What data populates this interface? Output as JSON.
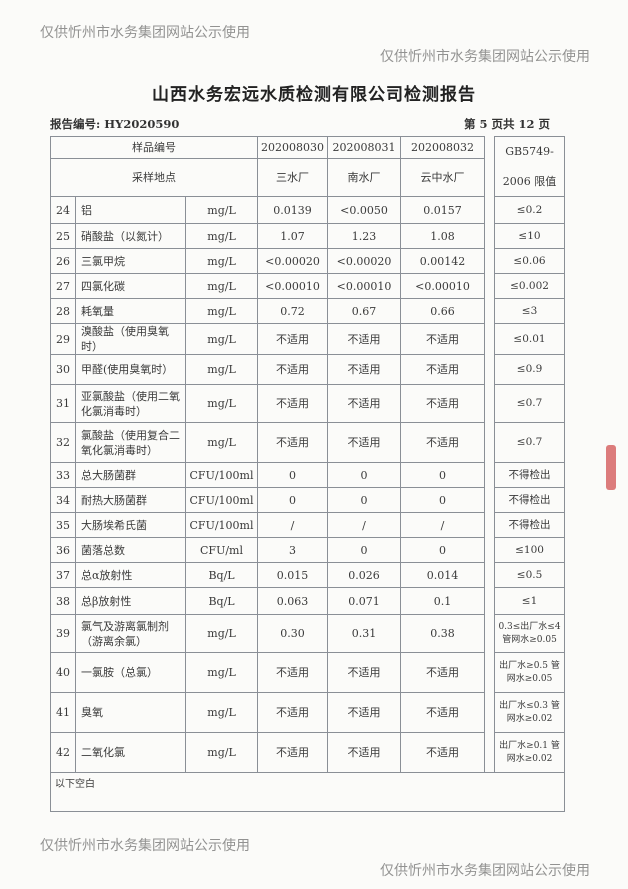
{
  "title": "山西水务宏远水质检测有限公司检测报告",
  "report_no": "报告编号: HY2020590",
  "page": "第 5 页共 12 页",
  "header": {
    "sample_no_label": "样品编号",
    "site_label": "采样地点",
    "samples": [
      "202008030",
      "202008031",
      "202008032"
    ],
    "sites": [
      "三水厂",
      "南水厂",
      "云中水厂"
    ],
    "limit_label_1": "GB5749-",
    "limit_label_2": "2006 限值"
  },
  "rows": [
    {
      "no": "24",
      "name": "铝",
      "unit": "mg/L",
      "v": [
        "0.0139",
        "<0.0050",
        "0.0157"
      ],
      "limit": "≤0.2"
    },
    {
      "no": "25",
      "name": "硝酸盐（以氮计）",
      "unit": "mg/L",
      "v": [
        "1.07",
        "1.23",
        "1.08"
      ],
      "limit": "≤10"
    },
    {
      "no": "26",
      "name": "三氯甲烷",
      "unit": "mg/L",
      "v": [
        "<0.00020",
        "<0.00020",
        "0.00142"
      ],
      "limit": "≤0.06"
    },
    {
      "no": "27",
      "name": "四氯化碳",
      "unit": "mg/L",
      "v": [
        "<0.00010",
        "<0.00010",
        "<0.00010"
      ],
      "limit": "≤0.002"
    },
    {
      "no": "28",
      "name": "耗氧量",
      "unit": "mg/L",
      "v": [
        "0.72",
        "0.67",
        "0.66"
      ],
      "limit": "≤3"
    },
    {
      "no": "29",
      "name": "溴酸盐（使用臭氧时）",
      "unit": "mg/L",
      "v": [
        "不适用",
        "不适用",
        "不适用"
      ],
      "limit": "≤0.01"
    },
    {
      "no": "30",
      "name": "甲醛(使用臭氧时）",
      "unit": "mg/L",
      "v": [
        "不适用",
        "不适用",
        "不适用"
      ],
      "limit": "≤0.9"
    },
    {
      "no": "31",
      "name": "亚氯酸盐（使用二氧化氯消毒时）",
      "unit": "mg/L",
      "v": [
        "不适用",
        "不适用",
        "不适用"
      ],
      "limit": "≤0.7"
    },
    {
      "no": "32",
      "name": "氯酸盐（使用复合二氧化氯消毒时）",
      "unit": "mg/L",
      "v": [
        "不适用",
        "不适用",
        "不适用"
      ],
      "limit": "≤0.7"
    },
    {
      "no": "33",
      "name": "总大肠菌群",
      "unit": "CFU/100ml",
      "v": [
        "0",
        "0",
        "0"
      ],
      "limit": "不得检出"
    },
    {
      "no": "34",
      "name": "耐热大肠菌群",
      "unit": "CFU/100ml",
      "v": [
        "0",
        "0",
        "0"
      ],
      "limit": "不得检出"
    },
    {
      "no": "35",
      "name": "大肠埃希氏菌",
      "unit": "CFU/100ml",
      "v": [
        "/",
        "/",
        "/"
      ],
      "limit": "不得检出"
    },
    {
      "no": "36",
      "name": "菌落总数",
      "unit": "CFU/ml",
      "v": [
        "3",
        "0",
        "0"
      ],
      "limit": "≤100"
    },
    {
      "no": "37",
      "name": "总α放射性",
      "unit": "Bq/L",
      "v": [
        "0.015",
        "0.026",
        "0.014"
      ],
      "limit": "≤0.5"
    },
    {
      "no": "38",
      "name": "总β放射性",
      "unit": "Bq/L",
      "v": [
        "0.063",
        "0.071",
        "0.1"
      ],
      "limit": "≤1"
    },
    {
      "no": "39",
      "name": "氯气及游离氯制剂（游离余氯）",
      "unit": "mg/L",
      "v": [
        "0.30",
        "0.31",
        "0.38"
      ],
      "limit": "0.3≤出厂水≤4 管网水≥0.05"
    },
    {
      "no": "40",
      "name": "一氯胺（总氯）",
      "unit": "mg/L",
      "v": [
        "不适用",
        "不适用",
        "不适用"
      ],
      "limit": "出厂水≥0.5 管网水≥0.05"
    },
    {
      "no": "41",
      "name": "臭氧",
      "unit": "mg/L",
      "v": [
        "不适用",
        "不适用",
        "不适用"
      ],
      "limit": "出厂水≤0.3 管网水≥0.02"
    },
    {
      "no": "42",
      "name": "二氧化氯",
      "unit": "mg/L",
      "v": [
        "不适用",
        "不适用",
        "不适用"
      ],
      "limit": "出厂水≥0.1 管网水≥0.02"
    }
  ],
  "footer_note": "以下空白",
  "watermark": "仅供忻州市水务集团网站公示使用"
}
